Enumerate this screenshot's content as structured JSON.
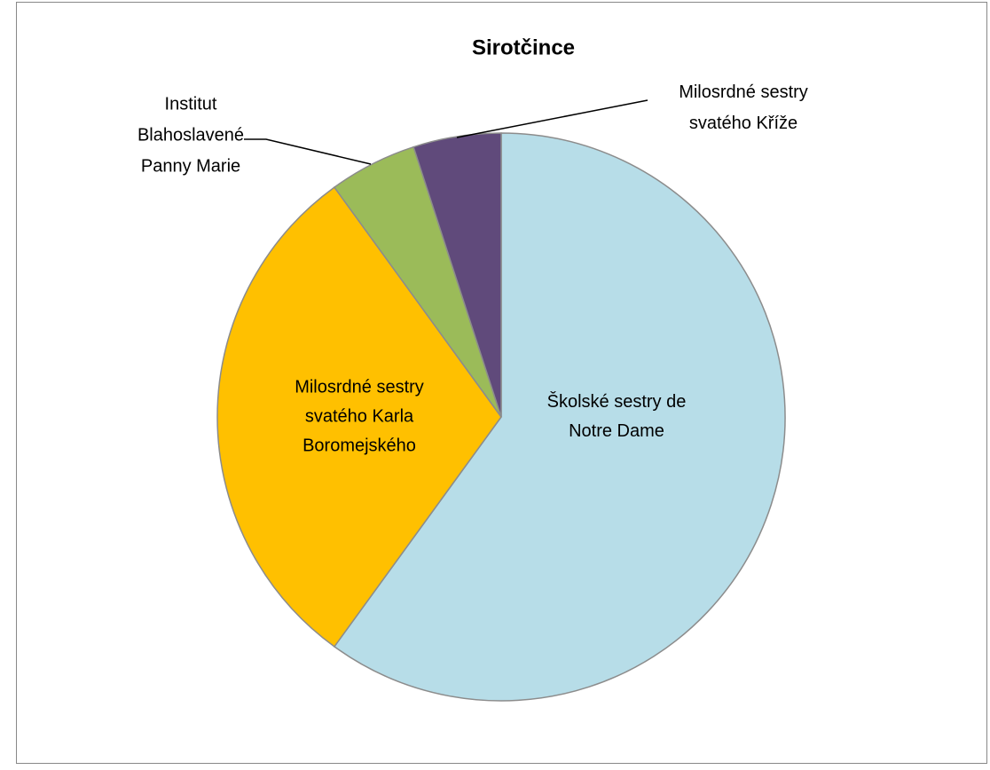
{
  "chart_data": {
    "type": "pie",
    "title": "Sirotčince",
    "categories": [
      [
        "Školské sestry de",
        "Notre Dame"
      ],
      [
        "Milosrdné sestry",
        "svatého Karla",
        "Boromejského"
      ],
      [
        "Institut",
        "Blahoslavené",
        "Panny Marie"
      ],
      [
        "Milosrdné sestry",
        "svatého Kříže"
      ]
    ],
    "values": [
      60,
      30,
      5,
      5
    ],
    "colors": [
      "#b7dde8",
      "#ffc000",
      "#9bbb59",
      "#604a7b"
    ]
  }
}
